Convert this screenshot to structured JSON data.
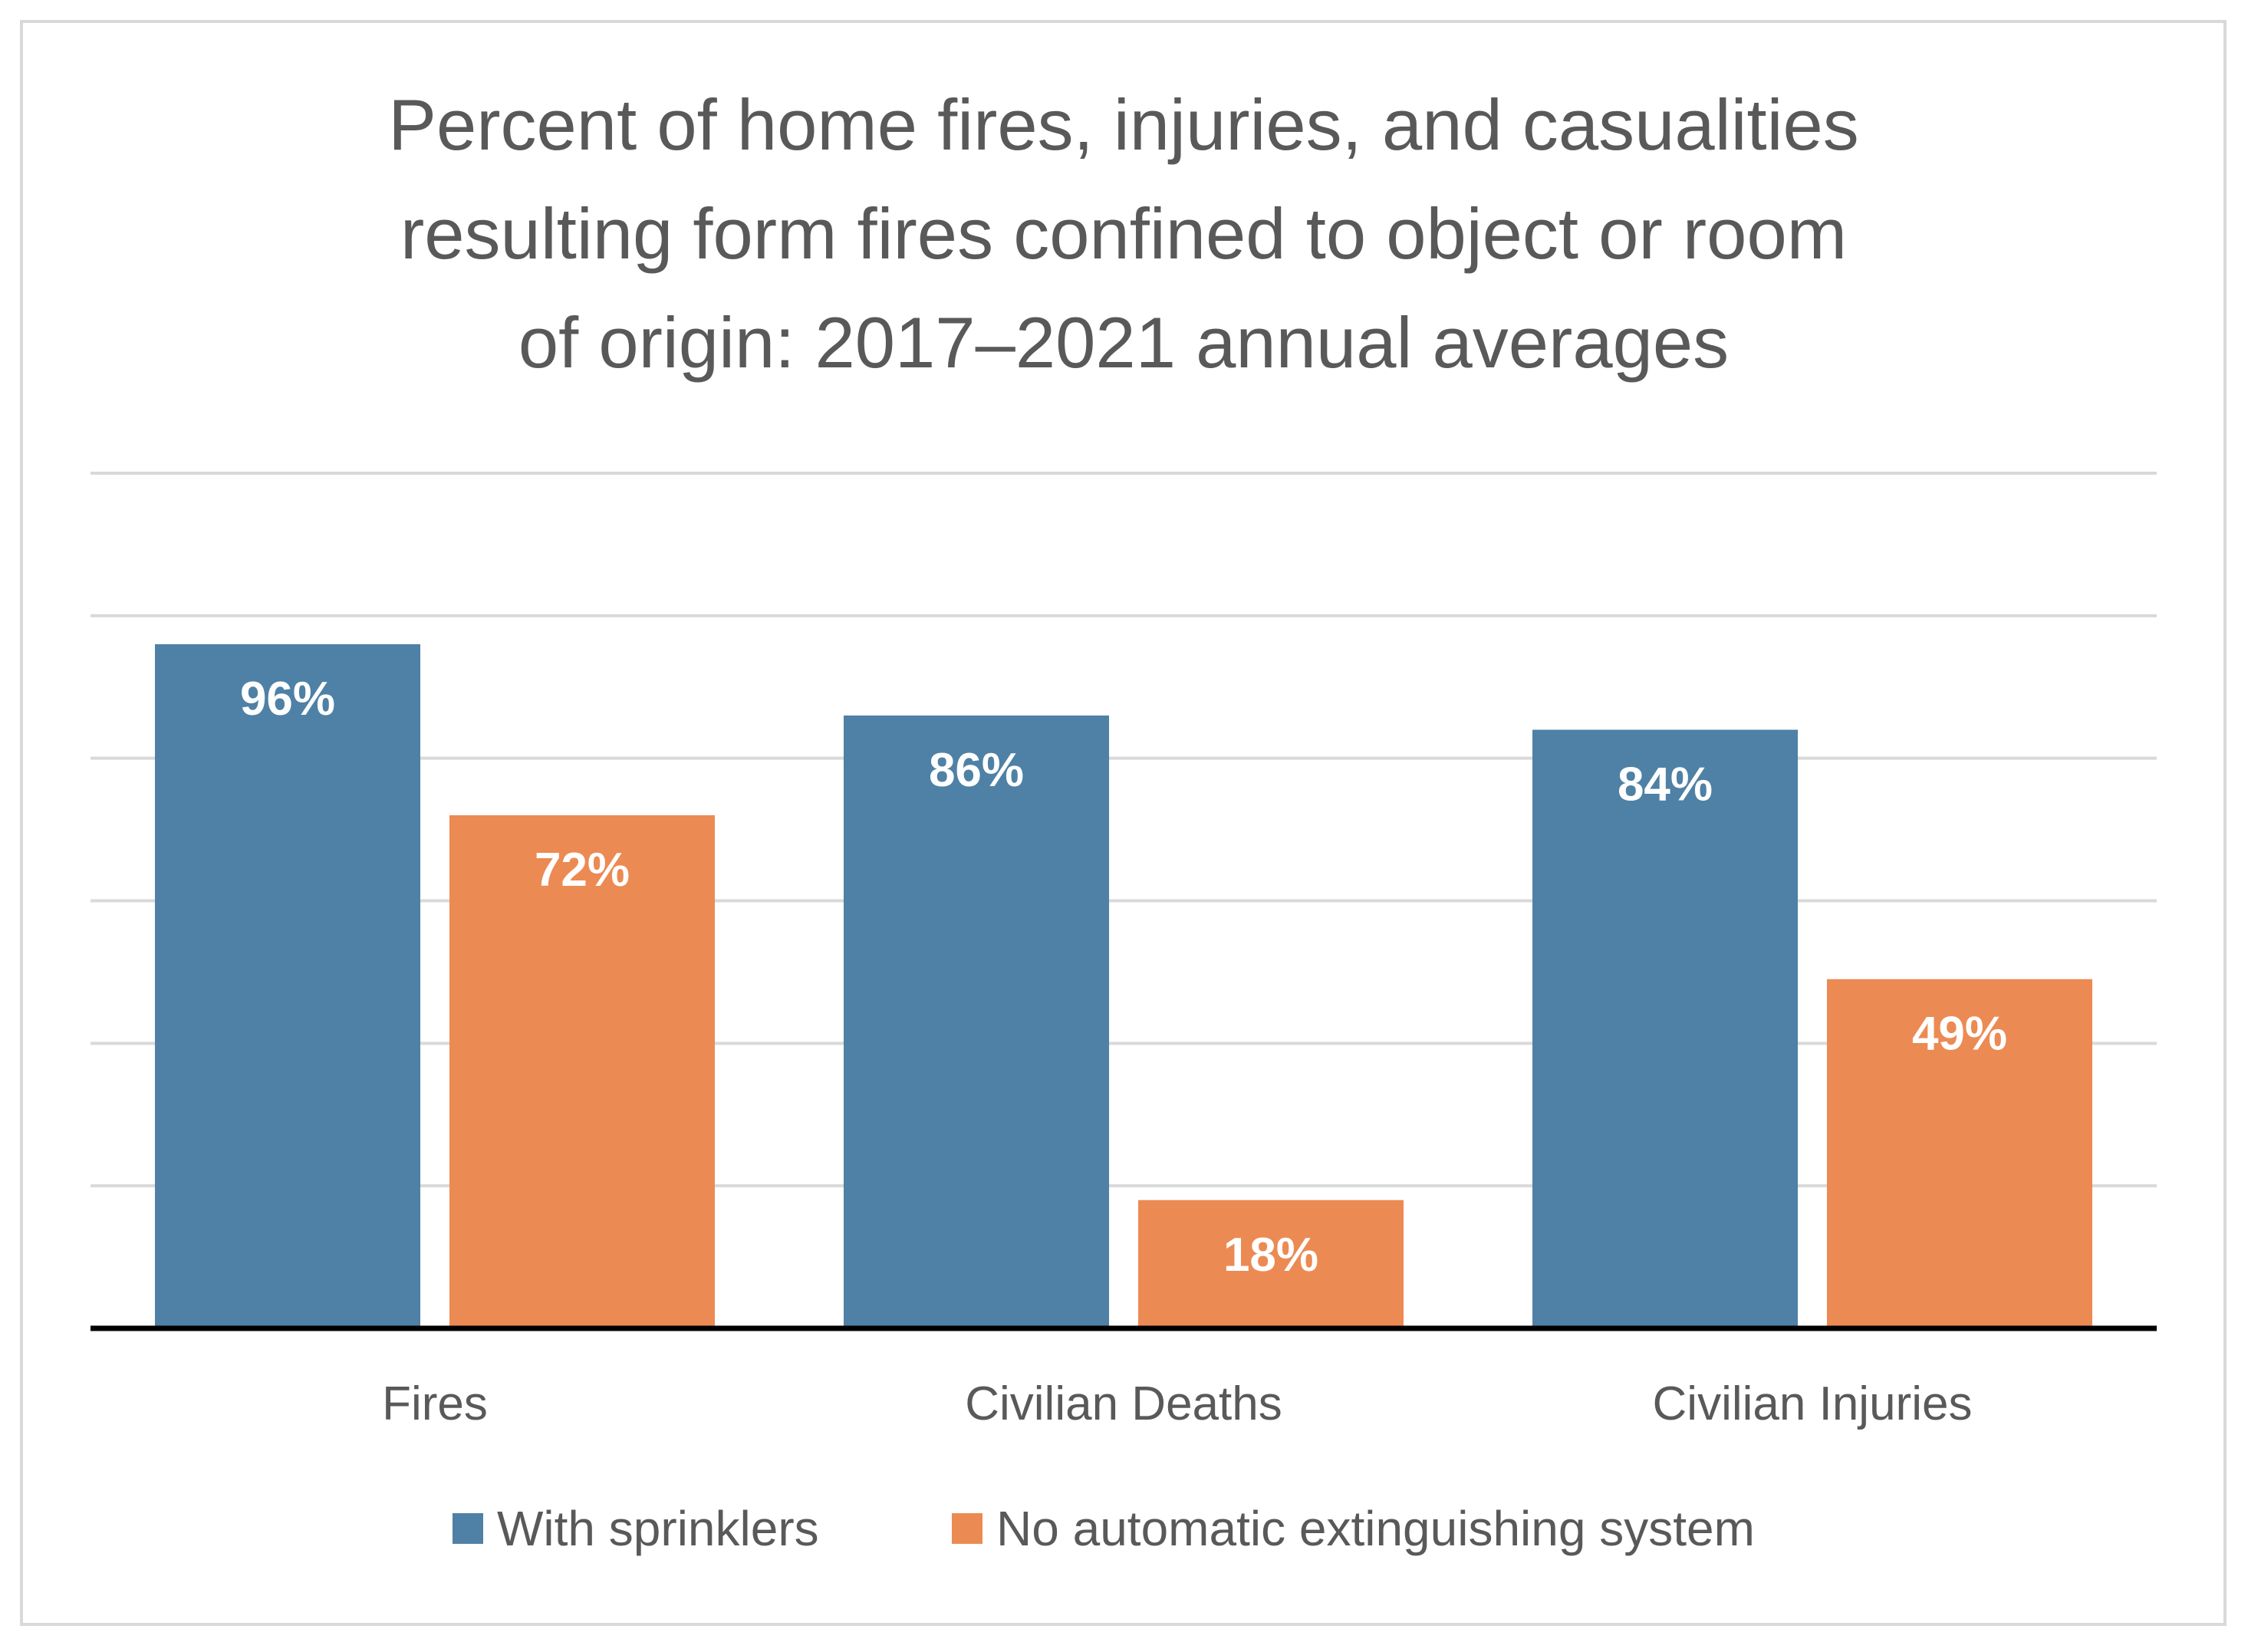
{
  "chart_data": {
    "type": "bar",
    "title": "Percent of home fires, injuries, and casualities resulting form fires confined to object or room of origin: 2017–2021 annual averages",
    "title_lines": [
      "Percent of home fires, injuries, and casualities",
      "resulting form fires confined to object or room",
      "of origin: 2017–2021 annual averages"
    ],
    "categories": [
      "Fires",
      "Civilian Deaths",
      "Civilian Injuries"
    ],
    "series": [
      {
        "name": "With sprinklers",
        "values": [
          96,
          86,
          84
        ],
        "labels": [
          "96%",
          "86%",
          "84%"
        ],
        "color": "#4e81a5"
      },
      {
        "name": "No automatic extinguishing system",
        "values": [
          72,
          18,
          49
        ],
        "labels": [
          "72%",
          "18%",
          "49%"
        ],
        "color": "#ec8a53"
      }
    ],
    "ylim": [
      0,
      120
    ],
    "gridlines": true,
    "y_axis_labels_visible": false,
    "legend_position": "bottom",
    "xlabel": "",
    "ylabel": ""
  },
  "colors": {
    "gridline": "#d9d9d9",
    "axis": "#000000",
    "text": "#595959"
  }
}
